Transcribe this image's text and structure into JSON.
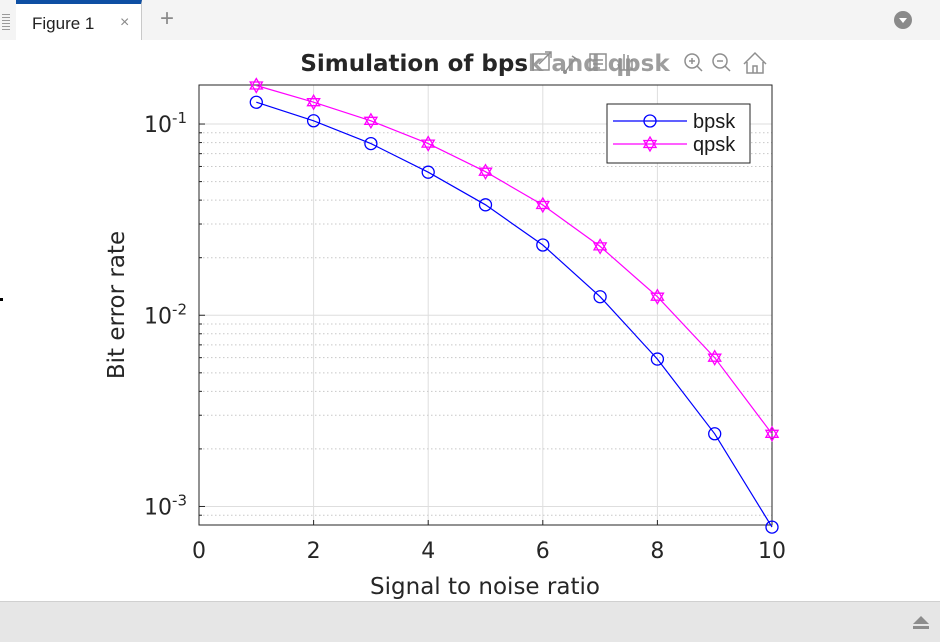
{
  "window": {
    "tab_label": "Figure 1",
    "tab_close": "×",
    "tab_add": "+"
  },
  "toolbar": {
    "icons": [
      "export-icon",
      "brush-icon",
      "data-tips-icon",
      "pan-icon",
      "zoom-in-icon",
      "zoom-out-icon",
      "home-icon"
    ]
  },
  "chart_data": {
    "type": "line",
    "title": "Simulation of bpsk and qpsk",
    "xlabel": "Signal to noise ratio",
    "ylabel": "Bit error rate",
    "xlim": [
      0,
      10
    ],
    "ylim": [
      0.0008,
      0.16
    ],
    "yscale": "log",
    "grid": true,
    "minor_grid": true,
    "legend_placement": "top-right",
    "xticks": [
      0,
      2,
      4,
      6,
      8,
      10
    ],
    "yticks": [
      {
        "value": 0.1,
        "base": "10",
        "exp": "-1"
      },
      {
        "value": 0.01,
        "base": "10",
        "exp": "-2"
      },
      {
        "value": 0.001,
        "base": "10",
        "exp": "-3"
      }
    ],
    "x": [
      1,
      2,
      3,
      4,
      5,
      6,
      7,
      8,
      9,
      10
    ],
    "series": [
      {
        "name": "bpsk",
        "color": "#0000ff",
        "marker": "circle",
        "values": [
          0.13,
          0.104,
          0.079,
          0.056,
          0.0378,
          0.0233,
          0.0125,
          0.0059,
          0.0024,
          0.00078
        ]
      },
      {
        "name": "qpsk",
        "color": "#ff00ff",
        "marker": "hexagram",
        "values": [
          0.159,
          0.13,
          0.104,
          0.079,
          0.0563,
          0.0377,
          0.0229,
          0.0125,
          0.006,
          0.0024
        ]
      }
    ]
  }
}
